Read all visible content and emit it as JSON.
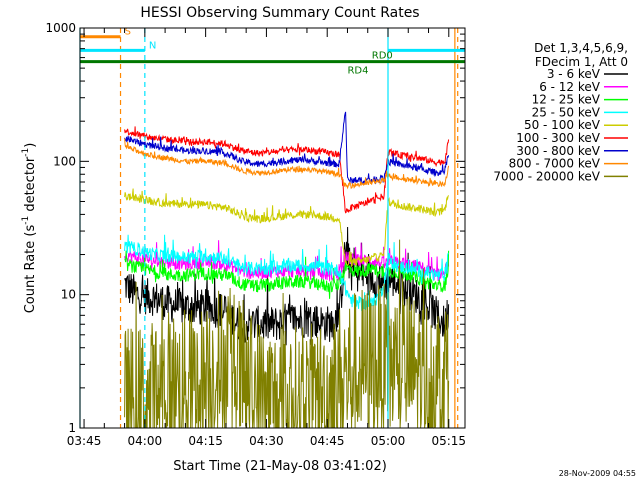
{
  "footer_timestamp": "28-Nov-2009 04:55",
  "chart_data": {
    "type": "line",
    "title": "HESSI Observing Summary Count Rates",
    "xlabel": "Start Time (21-May-08 03:41:02)",
    "ylabel_main": "Count Rate (s",
    "ylabel_sup1": "-1",
    "ylabel_mid": " detector",
    "ylabel_sup2": "-1",
    "ylabel_end": ")",
    "y_scale": "log",
    "ylim": [
      1,
      1000
    ],
    "xlim_minutes": [
      224,
      319
    ],
    "x_ticks": [
      {
        "label": "03:45",
        "minutes": 225
      },
      {
        "label": "04:00",
        "minutes": 240
      },
      {
        "label": "04:15",
        "minutes": 255
      },
      {
        "label": "04:30",
        "minutes": 270
      },
      {
        "label": "04:45",
        "minutes": 285
      },
      {
        "label": "05:00",
        "minutes": 300
      },
      {
        "label": "05:15",
        "minutes": 315
      }
    ],
    "y_ticks": [
      {
        "label": "1",
        "value": 1
      },
      {
        "label": "10",
        "value": 10
      },
      {
        "label": "100",
        "value": 100
      },
      {
        "label": "1000",
        "value": 1000
      }
    ],
    "legend": {
      "placement": "right",
      "header_line1": "Det 1,3,4,5,6,9,",
      "header_line2": "FDecim 1, Att 0"
    },
    "flags": [
      {
        "label": "S",
        "color": "#ff8800",
        "y_value": 860,
        "x_start": 224,
        "x_end": 234,
        "label_minutes": 235
      },
      {
        "label": "N",
        "color": "#00e5ff",
        "y_value": 680,
        "x_start": 224,
        "x_end": 240,
        "label_minutes": 241,
        "x2_start": 300,
        "x2_end": 319
      },
      {
        "label": "RD0",
        "color": "#007700",
        "y_value": 560,
        "x_start": 224,
        "x_end": 319,
        "label_minutes": 296
      },
      {
        "label": "RD4",
        "color": "#007700",
        "y_value": 560,
        "label_minutes": 290
      }
    ],
    "vlines": [
      {
        "minutes": 234,
        "color": "#ff8800",
        "style": "dash"
      },
      {
        "minutes": 240,
        "color": "#00e5ff",
        "style": "dash"
      },
      {
        "minutes": 300,
        "color": "#00e5ff",
        "style": "solid"
      },
      {
        "minutes": 316.5,
        "color": "#ff8800",
        "style": "solid"
      },
      {
        "minutes": 317.2,
        "color": "#ff8800",
        "style": "dash"
      },
      {
        "minutes": 224,
        "color": "#00e5ff",
        "style": "solid"
      }
    ],
    "series": [
      {
        "name": "3 - 6 keV",
        "color": "#000000",
        "noise": 0.14,
        "spike": 0.2,
        "points": [
          [
            235,
            12
          ],
          [
            238,
            10
          ],
          [
            242,
            9.5
          ],
          [
            246,
            8.5
          ],
          [
            250,
            8
          ],
          [
            255,
            8
          ],
          [
            260,
            7.5
          ],
          [
            263,
            6
          ],
          [
            268,
            6
          ],
          [
            272,
            6
          ],
          [
            276,
            6.5
          ],
          [
            280,
            6.5
          ],
          [
            286,
            6
          ],
          [
            288,
            7
          ],
          [
            289.5,
            22
          ],
          [
            291,
            15
          ],
          [
            294,
            14
          ],
          [
            297,
            13
          ],
          [
            299,
            12
          ],
          [
            301,
            13
          ],
          [
            304,
            11
          ],
          [
            308,
            9.5
          ],
          [
            312,
            7
          ],
          [
            314,
            6
          ],
          [
            315,
            8
          ]
        ]
      },
      {
        "name": "6 - 12 keV",
        "color": "#ff00ff",
        "noise": 0.05,
        "spike": 0.1,
        "points": [
          [
            235,
            20
          ],
          [
            238,
            19
          ],
          [
            242,
            18
          ],
          [
            246,
            17.5
          ],
          [
            250,
            17
          ],
          [
            255,
            17.5
          ],
          [
            260,
            17
          ],
          [
            264,
            15
          ],
          [
            268,
            14.5
          ],
          [
            272,
            15
          ],
          [
            276,
            15
          ],
          [
            280,
            15
          ],
          [
            286,
            14
          ],
          [
            288,
            14.5
          ],
          [
            289.5,
            19
          ],
          [
            292,
            18
          ],
          [
            296,
            18
          ],
          [
            299,
            17
          ],
          [
            301,
            17.5
          ],
          [
            304,
            17
          ],
          [
            308,
            16
          ],
          [
            312,
            14
          ],
          [
            314,
            14.5
          ],
          [
            315,
            18
          ]
        ]
      },
      {
        "name": "12 - 25 keV",
        "color": "#00ff00",
        "noise": 0.05,
        "spike": 0.1,
        "points": [
          [
            235,
            17
          ],
          [
            238,
            16
          ],
          [
            242,
            15
          ],
          [
            246,
            14
          ],
          [
            250,
            14
          ],
          [
            255,
            14.5
          ],
          [
            260,
            14
          ],
          [
            264,
            12
          ],
          [
            268,
            11.5
          ],
          [
            272,
            12
          ],
          [
            276,
            12.5
          ],
          [
            280,
            12.5
          ],
          [
            286,
            11.5
          ],
          [
            288,
            12
          ],
          [
            289.5,
            16
          ],
          [
            292,
            15
          ],
          [
            296,
            15.5
          ],
          [
            299,
            15
          ],
          [
            301,
            15
          ],
          [
            304,
            14.5
          ],
          [
            308,
            13
          ],
          [
            312,
            11.5
          ],
          [
            314,
            12
          ],
          [
            315,
            16
          ]
        ]
      },
      {
        "name": "25 - 50 keV",
        "color": "#00ffff",
        "noise": 0.05,
        "spike": 0.1,
        "points": [
          [
            235,
            23
          ],
          [
            238,
            22
          ],
          [
            242,
            20
          ],
          [
            246,
            19.5
          ],
          [
            250,
            19
          ],
          [
            255,
            19.5
          ],
          [
            260,
            18.5
          ],
          [
            264,
            16
          ],
          [
            268,
            15.5
          ],
          [
            272,
            16
          ],
          [
            276,
            16.5
          ],
          [
            280,
            16.5
          ],
          [
            286,
            15.5
          ],
          [
            288,
            15
          ],
          [
            289.5,
            11
          ],
          [
            291,
            9
          ],
          [
            294,
            8.5
          ],
          [
            296,
            8.5
          ],
          [
            298,
            10
          ],
          [
            299,
            12
          ],
          [
            300,
            19
          ],
          [
            301,
            17
          ],
          [
            304,
            16
          ],
          [
            308,
            15
          ],
          [
            312,
            14
          ],
          [
            314,
            14
          ],
          [
            315,
            20
          ]
        ]
      },
      {
        "name": "50 - 100 keV",
        "color": "#cccc00",
        "noise": 0.03,
        "spike": 0.05,
        "points": [
          [
            235,
            55
          ],
          [
            238,
            53
          ],
          [
            242,
            50
          ],
          [
            246,
            48
          ],
          [
            250,
            48
          ],
          [
            255,
            47
          ],
          [
            260,
            45
          ],
          [
            264,
            39
          ],
          [
            268,
            37
          ],
          [
            272,
            38
          ],
          [
            276,
            39.5
          ],
          [
            280,
            40
          ],
          [
            286,
            38
          ],
          [
            288,
            37
          ],
          [
            289.5,
            17
          ],
          [
            291,
            17.5
          ],
          [
            294,
            18
          ],
          [
            297,
            19
          ],
          [
            299,
            20
          ],
          [
            300,
            50
          ],
          [
            301,
            48
          ],
          [
            304,
            46
          ],
          [
            308,
            44
          ],
          [
            312,
            41
          ],
          [
            314,
            43
          ],
          [
            315,
            60
          ]
        ]
      },
      {
        "name": "100 - 300 keV",
        "color": "#ff0000",
        "noise": 0.025,
        "spike": 0.04,
        "points": [
          [
            235,
            170
          ],
          [
            238,
            160
          ],
          [
            242,
            150
          ],
          [
            246,
            145
          ],
          [
            250,
            140
          ],
          [
            255,
            140
          ],
          [
            260,
            135
          ],
          [
            264,
            120
          ],
          [
            268,
            115
          ],
          [
            272,
            118
          ],
          [
            276,
            122
          ],
          [
            280,
            122
          ],
          [
            286,
            115
          ],
          [
            288,
            113
          ],
          [
            289.5,
            42
          ],
          [
            291,
            45
          ],
          [
            294,
            48
          ],
          [
            297,
            52
          ],
          [
            299,
            55
          ],
          [
            300,
            118
          ],
          [
            301,
            115
          ],
          [
            304,
            110
          ],
          [
            308,
            105
          ],
          [
            312,
            98
          ],
          [
            314,
            100
          ],
          [
            315,
            145
          ]
        ]
      },
      {
        "name": "300 - 800 keV",
        "color": "#0000cc",
        "noise": 0.025,
        "spike": 0.04,
        "points": [
          [
            235,
            150
          ],
          [
            238,
            140
          ],
          [
            242,
            130
          ],
          [
            246,
            125
          ],
          [
            250,
            120
          ],
          [
            255,
            120
          ],
          [
            260,
            115
          ],
          [
            264,
            100
          ],
          [
            268,
            95
          ],
          [
            272,
            98
          ],
          [
            276,
            102
          ],
          [
            280,
            102
          ],
          [
            286,
            96
          ],
          [
            288,
            95
          ],
          [
            289.5,
            250
          ],
          [
            290,
            72
          ],
          [
            294,
            72
          ],
          [
            297,
            73
          ],
          [
            299,
            75
          ],
          [
            300,
            99
          ],
          [
            301,
            98
          ],
          [
            304,
            93
          ],
          [
            308,
            88
          ],
          [
            312,
            82
          ],
          [
            314,
            84
          ],
          [
            315,
            118
          ]
        ]
      },
      {
        "name": "800 - 7000 keV",
        "color": "#ff8800",
        "noise": 0.02,
        "spike": 0.03,
        "points": [
          [
            235,
            130
          ],
          [
            238,
            120
          ],
          [
            242,
            110
          ],
          [
            246,
            105
          ],
          [
            250,
            100
          ],
          [
            255,
            100
          ],
          [
            260,
            97
          ],
          [
            264,
            85
          ],
          [
            268,
            82
          ],
          [
            272,
            84
          ],
          [
            276,
            87
          ],
          [
            280,
            87
          ],
          [
            286,
            82
          ],
          [
            288,
            80
          ],
          [
            289.5,
            65
          ],
          [
            291,
            66
          ],
          [
            294,
            68
          ],
          [
            297,
            70
          ],
          [
            299,
            72
          ],
          [
            300,
            78
          ],
          [
            301,
            77
          ],
          [
            304,
            74
          ],
          [
            308,
            71
          ],
          [
            312,
            67
          ],
          [
            314,
            68
          ],
          [
            315,
            90
          ]
        ]
      },
      {
        "name": "7000 - 20000 keV",
        "color": "#808000",
        "noise": 0.6,
        "spike": 0.3,
        "points": [
          [
            235,
            1.5
          ],
          [
            240,
            1.5
          ],
          [
            245,
            2
          ],
          [
            250,
            2
          ],
          [
            255,
            2.2
          ],
          [
            258,
            3
          ],
          [
            262,
            2.8
          ],
          [
            266,
            2
          ],
          [
            270,
            1.6
          ],
          [
            275,
            1.5
          ],
          [
            280,
            1.5
          ],
          [
            286,
            1.8
          ],
          [
            288,
            2.2
          ],
          [
            292,
            2.8
          ],
          [
            296,
            3.2
          ],
          [
            300,
            3
          ],
          [
            304,
            2.8
          ],
          [
            308,
            2.5
          ],
          [
            312,
            2.3
          ],
          [
            315,
            2.6
          ]
        ]
      }
    ]
  }
}
